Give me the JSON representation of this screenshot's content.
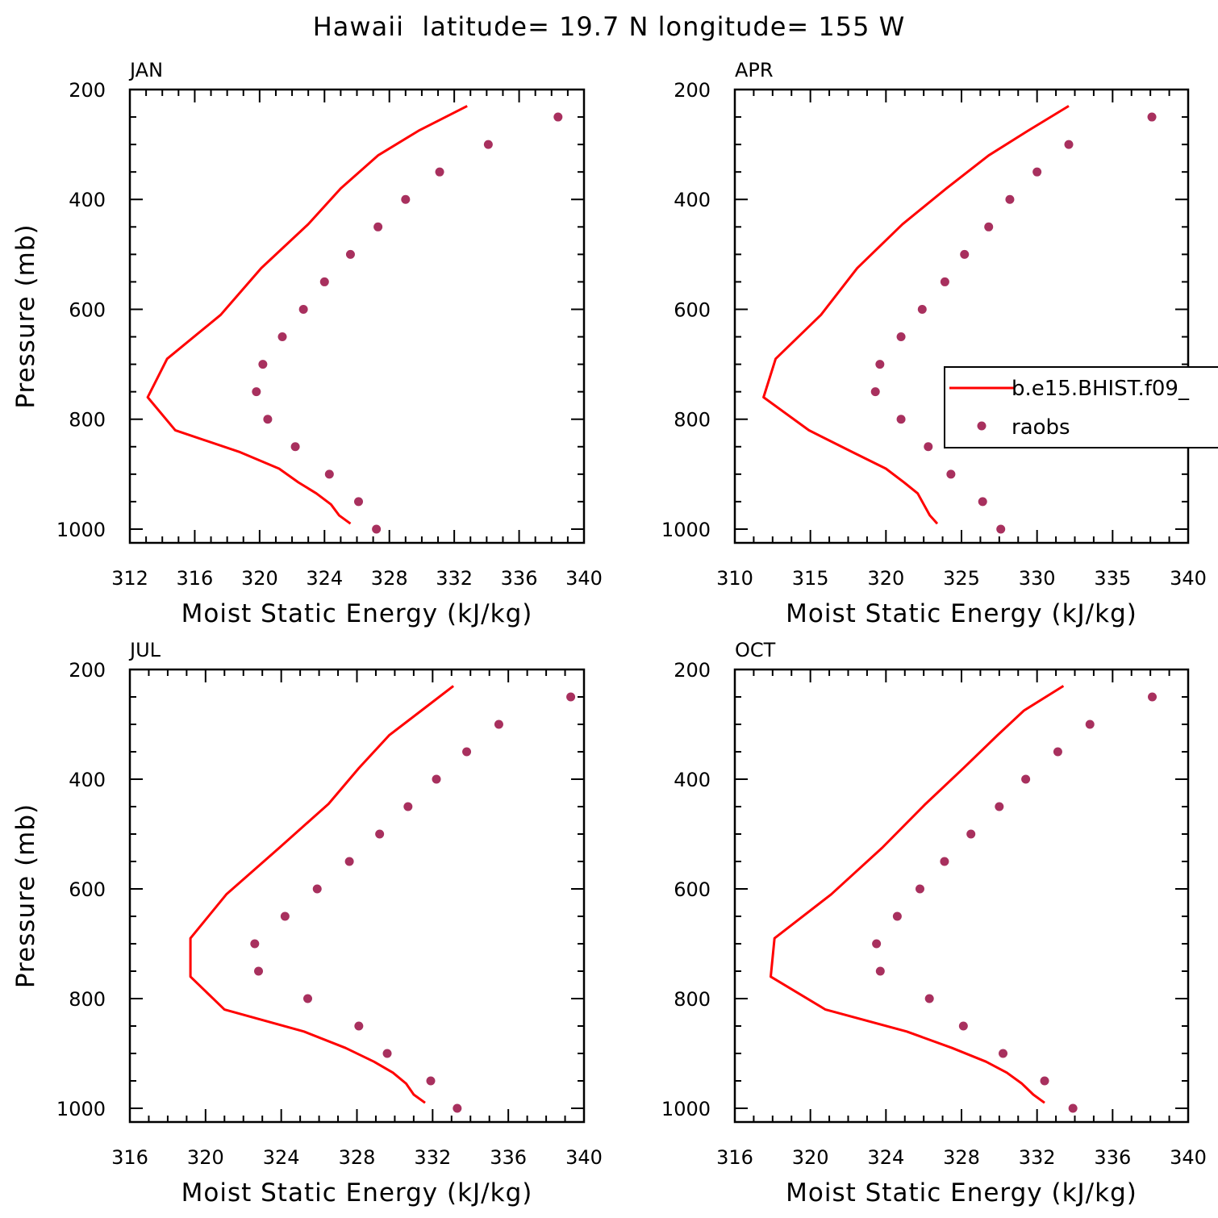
{
  "figure": {
    "title": "Hawaii  latitude= 19.7 N longitude= 155 W"
  },
  "colors": {
    "model_line": "#ff0000",
    "obs_marker": "#a8305e"
  },
  "legend": {
    "panel": 1,
    "placement": "right, clipped at figure edge",
    "entries": [
      "b.e15.BHIST.f09_",
      "raobs"
    ]
  },
  "chart_data": [
    {
      "type": "line+scatter",
      "title": "JAN",
      "xlabel": "Moist Static Energy (kJ/kg)",
      "ylabel": "Pressure (mb)",
      "xlim": [
        312,
        340
      ],
      "ylim": [
        1025,
        200
      ],
      "xticks": [
        312,
        316,
        320,
        324,
        328,
        332,
        336,
        340
      ],
      "yticks": [
        200,
        400,
        600,
        800,
        1000
      ],
      "series": [
        {
          "kind": "line",
          "x": [
            332.8,
            329.8,
            327.3,
            325.0,
            323.0,
            320.1,
            317.6,
            314.3,
            313.1,
            314.8,
            318.8,
            321.2,
            322.4,
            323.5,
            324.4,
            324.9,
            325.6
          ],
          "y": [
            230,
            275,
            320,
            380,
            445,
            525,
            610,
            690,
            760,
            820,
            860,
            890,
            915,
            935,
            955,
            975,
            990
          ]
        },
        {
          "kind": "scatter",
          "x": [
            338.4,
            334.1,
            331.1,
            329.0,
            327.3,
            325.6,
            324.0,
            322.7,
            321.4,
            320.2,
            319.8,
            320.5,
            322.2,
            324.3,
            326.1,
            327.2
          ],
          "y": [
            250,
            300,
            350,
            400,
            450,
            500,
            550,
            600,
            650,
            700,
            750,
            800,
            850,
            900,
            950,
            1000
          ]
        }
      ]
    },
    {
      "type": "line+scatter",
      "title": "APR",
      "xlabel": "Moist Static Energy (kJ/kg)",
      "ylabel": "",
      "xlim": [
        310,
        340
      ],
      "ylim": [
        1025,
        200
      ],
      "xticks": [
        310,
        315,
        320,
        325,
        330,
        335,
        340
      ],
      "yticks": [
        200,
        400,
        600,
        800,
        1000
      ],
      "series": [
        {
          "kind": "line",
          "x": [
            332.1,
            329.4,
            326.8,
            324.0,
            321.1,
            318.1,
            315.7,
            312.7,
            311.9,
            314.9,
            317.8,
            320.0,
            321.2,
            322.1,
            322.5,
            322.9,
            323.4
          ],
          "y": [
            230,
            275,
            320,
            380,
            445,
            525,
            610,
            690,
            760,
            820,
            860,
            890,
            915,
            935,
            955,
            975,
            990
          ]
        },
        {
          "kind": "scatter",
          "x": [
            337.6,
            332.1,
            330.0,
            328.2,
            326.8,
            325.2,
            323.9,
            322.4,
            321.0,
            319.6,
            319.3,
            321.0,
            322.8,
            324.3,
            326.4,
            327.6
          ],
          "y": [
            250,
            300,
            350,
            400,
            450,
            500,
            550,
            600,
            650,
            700,
            750,
            800,
            850,
            900,
            950,
            1000
          ]
        }
      ]
    },
    {
      "type": "line+scatter",
      "title": "JUL",
      "xlabel": "Moist Static Energy (kJ/kg)",
      "ylabel": "Pressure (mb)",
      "xlim": [
        316,
        340
      ],
      "ylim": [
        1025,
        200
      ],
      "xticks": [
        316,
        320,
        324,
        328,
        332,
        336,
        340
      ],
      "yticks": [
        200,
        400,
        600,
        800,
        1000
      ],
      "series": [
        {
          "kind": "line",
          "x": [
            333.1,
            331.4,
            329.7,
            328.1,
            326.5,
            323.9,
            321.1,
            319.2,
            319.2,
            321.0,
            325.2,
            327.4,
            328.9,
            329.9,
            330.6,
            331.0,
            331.6
          ],
          "y": [
            230,
            275,
            320,
            380,
            445,
            525,
            610,
            690,
            760,
            820,
            860,
            890,
            915,
            935,
            955,
            975,
            990
          ]
        },
        {
          "kind": "scatter",
          "x": [
            339.3,
            335.5,
            333.8,
            332.2,
            330.7,
            329.2,
            327.6,
            325.9,
            324.2,
            322.6,
            322.8,
            325.4,
            328.1,
            329.6,
            331.9,
            333.3
          ],
          "y": [
            250,
            300,
            350,
            400,
            450,
            500,
            550,
            600,
            650,
            700,
            750,
            800,
            850,
            900,
            950,
            1000
          ]
        }
      ]
    },
    {
      "type": "line+scatter",
      "title": "OCT",
      "xlabel": "Moist Static Energy (kJ/kg)",
      "ylabel": "",
      "xlim": [
        316,
        340
      ],
      "ylim": [
        1025,
        200
      ],
      "xticks": [
        316,
        320,
        324,
        328,
        332,
        336,
        340
      ],
      "yticks": [
        200,
        400,
        600,
        800,
        1000
      ],
      "series": [
        {
          "kind": "line",
          "x": [
            333.4,
            331.3,
            329.9,
            328.1,
            326.1,
            323.8,
            321.1,
            318.1,
            317.9,
            320.8,
            325.1,
            327.5,
            329.3,
            330.4,
            331.2,
            331.8,
            332.4
          ],
          "y": [
            230,
            275,
            320,
            380,
            445,
            525,
            610,
            690,
            760,
            820,
            860,
            890,
            915,
            935,
            955,
            975,
            990
          ]
        },
        {
          "kind": "scatter",
          "x": [
            338.1,
            334.8,
            333.1,
            331.4,
            330.0,
            328.5,
            327.1,
            325.8,
            324.6,
            323.5,
            323.7,
            326.3,
            328.1,
            330.2,
            332.4,
            333.9
          ],
          "y": [
            250,
            300,
            350,
            400,
            450,
            500,
            550,
            600,
            650,
            700,
            750,
            800,
            850,
            900,
            950,
            1000
          ]
        }
      ]
    }
  ]
}
